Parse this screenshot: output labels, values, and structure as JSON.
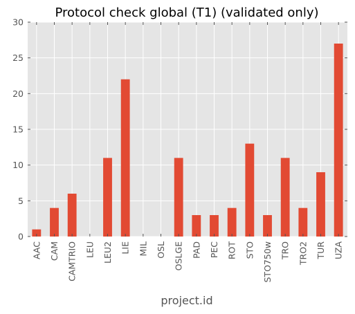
{
  "chart_data": {
    "type": "bar",
    "title": "Protocol check global (T1) (validated only)",
    "xlabel": "project.id",
    "ylabel": "",
    "categories": [
      "AAC",
      "CAM",
      "CAMTRIO",
      "LEU",
      "LEU2",
      "LIE",
      "MIL",
      "OSL",
      "OSLGE",
      "PAD",
      "PEC",
      "ROT",
      "STO",
      "STO750w",
      "TRO",
      "TRO2",
      "TUR",
      "UZA"
    ],
    "values": [
      1,
      4,
      6,
      0,
      11,
      22,
      0,
      0,
      11,
      3,
      3,
      4,
      13,
      3,
      11,
      4,
      9,
      27
    ],
    "ylim": [
      0,
      30
    ],
    "yticks": [
      0,
      5,
      10,
      15,
      20,
      25,
      30
    ],
    "grid": true,
    "legend": "none",
    "colors": {
      "bar": "#E24A33",
      "plot_background": "#E5E5E5",
      "grid": "#FFFFFF",
      "tick_label": "#555555"
    }
  }
}
